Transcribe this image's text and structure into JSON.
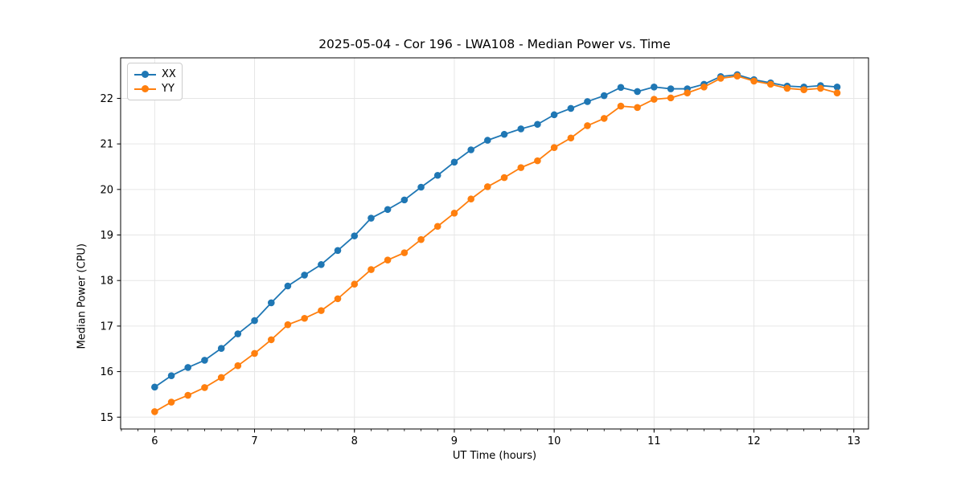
{
  "figure": {
    "title": "2025-05-04 - Cor 196 - LWA108 - Median Power vs. Time",
    "xlabel": "UT Time (hours)",
    "ylabel": "Median Power (CPU)"
  },
  "legend": {
    "items": [
      {
        "label": "XX",
        "color": "#1f77b4"
      },
      {
        "label": "YY",
        "color": "#ff7f0e"
      }
    ]
  },
  "chart_data": {
    "type": "line",
    "title": "2025-05-04 - Cor 196 - LWA108 - Median Power vs. Time",
    "xlabel": "UT Time (hours)",
    "ylabel": "Median Power (CPU)",
    "xlim": [
      5.659,
      13.147
    ],
    "ylim": [
      14.74,
      22.89
    ],
    "x_ticks": [
      6,
      7,
      8,
      9,
      10,
      11,
      12,
      13
    ],
    "y_ticks": [
      15,
      16,
      17,
      18,
      19,
      20,
      21,
      22
    ],
    "x_minor_step": 0.1666667,
    "grid": true,
    "grid_color": "#e6e6e6",
    "spine_color": "#000000",
    "background": "#ffffff",
    "legend_position": "upper left",
    "marker": "o",
    "x": [
      6.0,
      6.167,
      6.333,
      6.5,
      6.667,
      6.833,
      7.0,
      7.167,
      7.333,
      7.5,
      7.667,
      7.833,
      8.0,
      8.167,
      8.333,
      8.5,
      8.667,
      8.833,
      9.0,
      9.167,
      9.333,
      9.5,
      9.667,
      9.833,
      10.0,
      10.167,
      10.333,
      10.5,
      10.667,
      10.833,
      11.0,
      11.167,
      11.333,
      11.5,
      11.667,
      11.833,
      12.0,
      12.167,
      12.333,
      12.5,
      12.667,
      12.833
    ],
    "series": [
      {
        "name": "XX",
        "color": "#1f77b4",
        "values": [
          15.66,
          15.91,
          16.09,
          16.25,
          16.51,
          16.83,
          17.12,
          17.51,
          17.88,
          18.12,
          18.35,
          18.66,
          18.98,
          19.37,
          19.56,
          19.77,
          20.05,
          20.31,
          20.6,
          20.87,
          21.08,
          21.21,
          21.33,
          21.43,
          21.64,
          21.78,
          21.93,
          22.06,
          22.24,
          22.15,
          22.25,
          22.21,
          22.21,
          22.31,
          22.48,
          22.52,
          22.41,
          22.34,
          22.27,
          22.25,
          22.28,
          22.25
        ]
      },
      {
        "name": "YY",
        "color": "#ff7f0e",
        "values": [
          15.12,
          15.33,
          15.48,
          15.65,
          15.87,
          16.13,
          16.4,
          16.7,
          17.03,
          17.17,
          17.34,
          17.6,
          17.92,
          18.24,
          18.45,
          18.61,
          18.9,
          19.19,
          19.48,
          19.79,
          20.06,
          20.26,
          20.48,
          20.63,
          20.92,
          21.13,
          21.4,
          21.56,
          21.83,
          21.8,
          21.98,
          22.01,
          22.12,
          22.25,
          22.44,
          22.49,
          22.38,
          22.31,
          22.22,
          22.19,
          22.22,
          22.12
        ]
      }
    ]
  }
}
